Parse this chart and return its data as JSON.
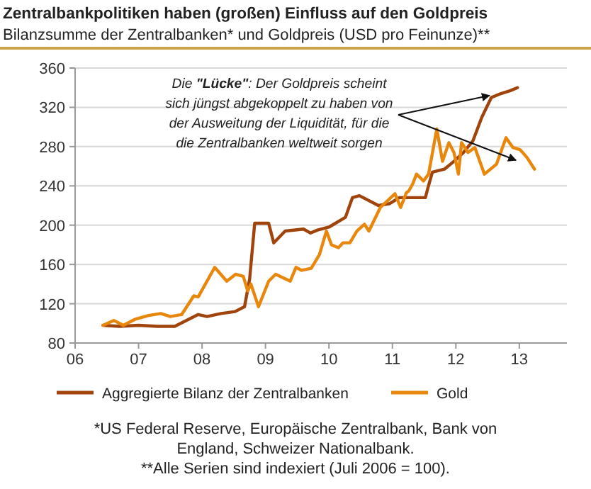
{
  "chart_data": {
    "type": "line",
    "title": "Zentralbankpolitiken haben (großen) Einfluss auf den Goldpreis",
    "subtitle": "Bilanzsumme der Zentralbanken* und Goldpreis (USD pro Feinunze)**",
    "xlim": [
      2006,
      2013.75
    ],
    "xticks": [
      {
        "value": 2006,
        "label": "06"
      },
      {
        "value": 2007,
        "label": "07"
      },
      {
        "value": 2008,
        "label": "08"
      },
      {
        "value": 2009,
        "label": "09"
      },
      {
        "value": 2010,
        "label": "10"
      },
      {
        "value": 2011,
        "label": "11"
      },
      {
        "value": 2012,
        "label": "12"
      },
      {
        "value": 2013,
        "label": "13"
      }
    ],
    "ylim": [
      80,
      360
    ],
    "yticks": [
      80,
      120,
      160,
      200,
      240,
      280,
      320,
      360
    ],
    "grid": "y",
    "legend": "bottom",
    "line_style": "solid",
    "marker": "none",
    "series": [
      {
        "name": "Aggregierte Bilanz der Zentralbanken",
        "color": "#a0440c",
        "x": [
          2006.44,
          2006.7,
          2007.0,
          2007.3,
          2007.57,
          2007.94,
          2008.08,
          2008.3,
          2008.52,
          2008.67,
          2008.75,
          2008.83,
          2009.05,
          2009.13,
          2009.31,
          2009.6,
          2009.71,
          2009.82,
          2010.0,
          2010.26,
          2010.37,
          2010.48,
          2010.78,
          2010.96,
          2011.11,
          2011.26,
          2011.52,
          2011.56,
          2011.63,
          2011.82,
          2011.97,
          2012.12,
          2012.27,
          2012.41,
          2012.56,
          2012.71,
          2012.86,
          2012.97
        ],
        "values": [
          98,
          97,
          98,
          97,
          97,
          109,
          107,
          110,
          112,
          117,
          145,
          202,
          202,
          182,
          194,
          196,
          192,
          195,
          198,
          208,
          228,
          230,
          220,
          222,
          228,
          228,
          228,
          238,
          254,
          257,
          265,
          274,
          286,
          310,
          330,
          334,
          337,
          340
        ]
      },
      {
        "name": "Gold",
        "color": "#e8870c",
        "x": [
          2006.44,
          2006.61,
          2006.76,
          2006.94,
          2007.16,
          2007.35,
          2007.5,
          2007.68,
          2007.87,
          2007.94,
          2008.2,
          2008.39,
          2008.53,
          2008.65,
          2008.72,
          2008.77,
          2008.89,
          2009.05,
          2009.16,
          2009.39,
          2009.48,
          2009.57,
          2009.72,
          2009.85,
          2009.96,
          2010.04,
          2010.15,
          2010.22,
          2010.33,
          2010.44,
          2010.56,
          2010.63,
          2010.81,
          2011.04,
          2011.13,
          2011.22,
          2011.26,
          2011.32,
          2011.38,
          2011.49,
          2011.57,
          2011.7,
          2011.79,
          2011.89,
          2011.97,
          2012.04,
          2012.09,
          2012.19,
          2012.3,
          2012.45,
          2012.64,
          2012.79,
          2012.9,
          2013.01,
          2013.12,
          2013.24
        ],
        "values": [
          98,
          103,
          98,
          104,
          108,
          110,
          107,
          109,
          128,
          127,
          157,
          143,
          150,
          148,
          133,
          140,
          117,
          143,
          150,
          143,
          157,
          154,
          156,
          170,
          194,
          180,
          177,
          182,
          182,
          194,
          201,
          194,
          218,
          232,
          218,
          233,
          235,
          242,
          252,
          245,
          252,
          298,
          265,
          284,
          274,
          252,
          284,
          274,
          279,
          252,
          262,
          289,
          279,
          277,
          269,
          257
        ]
      }
    ],
    "annotations": [
      {
        "text": "Die \"Lücke\": Der Goldpreis scheint sich jüngst abgekoppelt zu haben von der Ausweitung der Liquidität, für die die Zentralbanken weltweit sorgen",
        "x": 2012.53,
        "y": 332
      },
      "*US Federal Reserve, Europäische Zentralbank, Bank von England, Schweizer Nationalbank.",
      "**Alle Serien sind indexiert (Juli 2006 = 100)."
    ]
  }
}
